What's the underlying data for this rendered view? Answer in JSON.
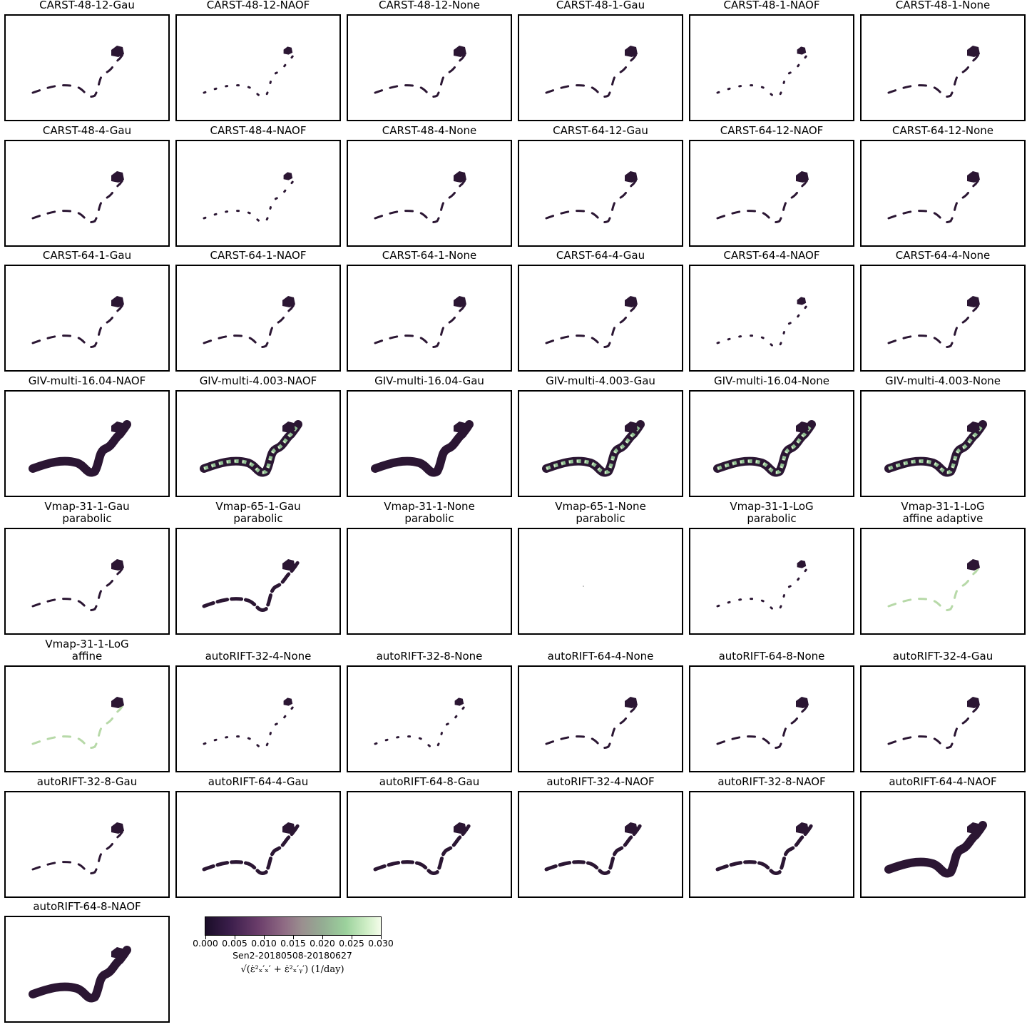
{
  "panels": [
    {
      "title": [
        "CARST-48-12-Gau"
      ],
      "coverage": "sparse"
    },
    {
      "title": [
        "CARST-48-12-NAOF"
      ],
      "coverage": "very-sparse"
    },
    {
      "title": [
        "CARST-48-12-None"
      ],
      "coverage": "sparse"
    },
    {
      "title": [
        "CARST-48-1-Gau"
      ],
      "coverage": "sparse"
    },
    {
      "title": [
        "CARST-48-1-NAOF"
      ],
      "coverage": "very-sparse"
    },
    {
      "title": [
        "CARST-48-1-None"
      ],
      "coverage": "sparse"
    },
    {
      "title": [
        "CARST-48-4-Gau"
      ],
      "coverage": "sparse"
    },
    {
      "title": [
        "CARST-48-4-NAOF"
      ],
      "coverage": "very-sparse"
    },
    {
      "title": [
        "CARST-48-4-None"
      ],
      "coverage": "sparse"
    },
    {
      "title": [
        "CARST-64-12-Gau"
      ],
      "coverage": "sparse"
    },
    {
      "title": [
        "CARST-64-12-NAOF"
      ],
      "coverage": "sparse"
    },
    {
      "title": [
        "CARST-64-12-None"
      ],
      "coverage": "sparse"
    },
    {
      "title": [
        "CARST-64-1-Gau"
      ],
      "coverage": "sparse"
    },
    {
      "title": [
        "CARST-64-1-NAOF"
      ],
      "coverage": "sparse"
    },
    {
      "title": [
        "CARST-64-1-None"
      ],
      "coverage": "sparse"
    },
    {
      "title": [
        "CARST-64-4-Gau"
      ],
      "coverage": "sparse"
    },
    {
      "title": [
        "CARST-64-4-NAOF"
      ],
      "coverage": "very-sparse"
    },
    {
      "title": [
        "CARST-64-4-None"
      ],
      "coverage": "sparse"
    },
    {
      "title": [
        "GIV-multi-16.04-NAOF"
      ],
      "coverage": "full-dark"
    },
    {
      "title": [
        "GIV-multi-4.003-NAOF"
      ],
      "coverage": "full-mixed"
    },
    {
      "title": [
        "GIV-multi-16.04-Gau"
      ],
      "coverage": "full-dark"
    },
    {
      "title": [
        "GIV-multi-4.003-Gau"
      ],
      "coverage": "full-mixed"
    },
    {
      "title": [
        "GIV-multi-16.04-None"
      ],
      "coverage": "full-mixed"
    },
    {
      "title": [
        "GIV-multi-4.003-None"
      ],
      "coverage": "full-mixed"
    },
    {
      "title": [
        "Vmap-31-1-Gau",
        "parabolic"
      ],
      "coverage": "sparse"
    },
    {
      "title": [
        "Vmap-65-1-Gau",
        "parabolic"
      ],
      "coverage": "medium"
    },
    {
      "title": [
        "Vmap-31-1-None",
        "parabolic"
      ],
      "coverage": "empty"
    },
    {
      "title": [
        "Vmap-65-1-None",
        "parabolic"
      ],
      "coverage": "empty"
    },
    {
      "title": [
        "Vmap-31-1-LoG",
        "parabolic"
      ],
      "coverage": "very-sparse"
    },
    {
      "title": [
        "Vmap-31-1-LoG",
        "affine adaptive"
      ],
      "coverage": "sparse-light"
    },
    {
      "title": [
        "Vmap-31-1-LoG",
        "affine"
      ],
      "coverage": "sparse-light"
    },
    {
      "title": [
        "autoRIFT-32-4-None"
      ],
      "coverage": "very-sparse"
    },
    {
      "title": [
        "autoRIFT-32-8-None"
      ],
      "coverage": "very-sparse"
    },
    {
      "title": [
        "autoRIFT-64-4-None"
      ],
      "coverage": "sparse"
    },
    {
      "title": [
        "autoRIFT-64-8-None"
      ],
      "coverage": "sparse"
    },
    {
      "title": [
        "autoRIFT-32-4-Gau"
      ],
      "coverage": "sparse"
    },
    {
      "title": [
        "autoRIFT-32-8-Gau"
      ],
      "coverage": "sparse"
    },
    {
      "title": [
        "autoRIFT-64-4-Gau"
      ],
      "coverage": "medium"
    },
    {
      "title": [
        "autoRIFT-64-8-Gau"
      ],
      "coverage": "medium"
    },
    {
      "title": [
        "autoRIFT-32-4-NAOF"
      ],
      "coverage": "medium"
    },
    {
      "title": [
        "autoRIFT-32-8-NAOF"
      ],
      "coverage": "medium"
    },
    {
      "title": [
        "autoRIFT-64-4-NAOF"
      ],
      "coverage": "full-dark"
    },
    {
      "title": [
        "autoRIFT-64-8-NAOF"
      ],
      "coverage": "full-dark"
    }
  ],
  "colorbar": {
    "ticks": [
      "0.000",
      "0.005",
      "0.010",
      "0.015",
      "0.020",
      "0.025",
      "0.030"
    ],
    "range": [
      0.0,
      0.03
    ],
    "colormap_colors": [
      "#1a0d28",
      "#6a3d6a",
      "#9a8f8f",
      "#9bd19c",
      "#f4fcea"
    ],
    "label_line1": "Sen2-20180508-20180627",
    "label_line2": "√(ε̇²ₓ′ₓ′ + ε̇²ₓ′ᵧ′) (1/day)"
  },
  "chart_data": {
    "type": "heatmap",
    "title": "",
    "panel_count": 43,
    "colorbar_range": [
      0.0,
      0.03
    ],
    "colorbar_label": "Sen2-20180508-20180627",
    "colorbar_units": "(1/day)"
  }
}
